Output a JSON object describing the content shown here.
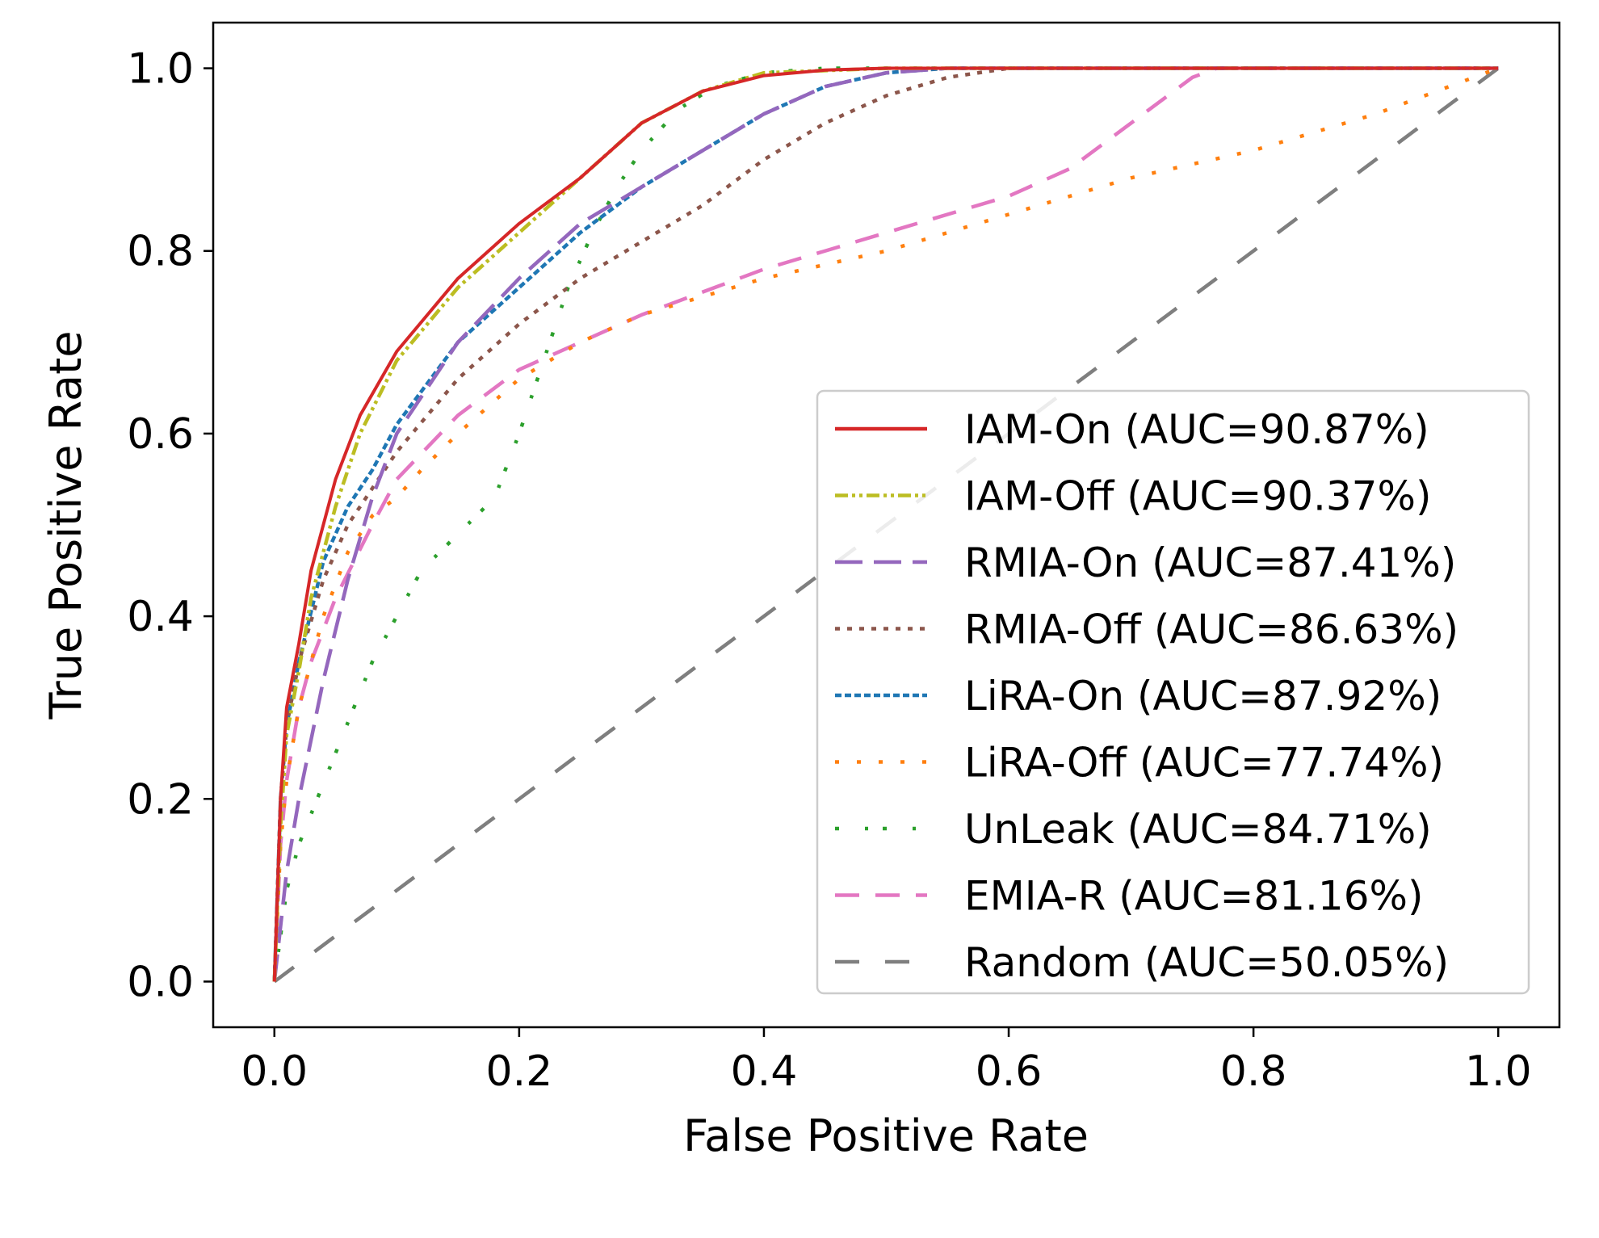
{
  "chart_data": {
    "type": "line",
    "title": "",
    "xlabel": "False Positive Rate",
    "ylabel": "True Positive Rate",
    "xlim": [
      -0.05,
      1.05
    ],
    "ylim": [
      -0.05,
      1.05
    ],
    "xticks": [
      0.0,
      0.2,
      0.4,
      0.6,
      0.8,
      1.0
    ],
    "yticks": [
      0.0,
      0.2,
      0.4,
      0.6,
      0.8,
      1.0
    ],
    "xtick_labels": [
      "0.0",
      "0.2",
      "0.4",
      "0.6",
      "0.8",
      "1.0"
    ],
    "ytick_labels": [
      "0.0",
      "0.2",
      "0.4",
      "0.6",
      "0.8",
      "1.0"
    ],
    "grid": false,
    "legend_position": "lower-right",
    "series": [
      {
        "name": "IAM-On (AUC=90.87%)",
        "color": "#d62728",
        "dash": "solid",
        "x": [
          0,
          0.005,
          0.01,
          0.02,
          0.03,
          0.05,
          0.07,
          0.1,
          0.15,
          0.2,
          0.25,
          0.3,
          0.35,
          0.4,
          0.45,
          0.5,
          0.6,
          1.0
        ],
        "y": [
          0,
          0.2,
          0.3,
          0.37,
          0.45,
          0.55,
          0.62,
          0.69,
          0.77,
          0.83,
          0.88,
          0.94,
          0.975,
          0.992,
          0.998,
          1.0,
          1.0,
          1.0
        ]
      },
      {
        "name": "IAM-Off (AUC=90.37%)",
        "color": "#bcbd22",
        "dash": "dashdotdot",
        "x": [
          0,
          0.005,
          0.01,
          0.02,
          0.03,
          0.05,
          0.07,
          0.1,
          0.15,
          0.2,
          0.25,
          0.3,
          0.35,
          0.4,
          0.5,
          1.0
        ],
        "y": [
          0,
          0.17,
          0.27,
          0.34,
          0.42,
          0.52,
          0.6,
          0.68,
          0.76,
          0.82,
          0.88,
          0.94,
          0.975,
          0.995,
          1.0,
          1.0
        ]
      },
      {
        "name": "RMIA-On (AUC=87.41%)",
        "color": "#9467bd",
        "dash": "longdash",
        "x": [
          0,
          0.01,
          0.02,
          0.04,
          0.06,
          0.08,
          0.1,
          0.15,
          0.2,
          0.25,
          0.3,
          0.35,
          0.4,
          0.45,
          0.5,
          0.55,
          1.0
        ],
        "y": [
          0,
          0.12,
          0.2,
          0.33,
          0.44,
          0.53,
          0.6,
          0.7,
          0.77,
          0.83,
          0.87,
          0.91,
          0.95,
          0.98,
          0.995,
          1.0,
          1.0
        ]
      },
      {
        "name": "RMIA-Off (AUC=86.63%)",
        "color": "#8c564b",
        "dash": "dotted",
        "x": [
          0,
          0.005,
          0.01,
          0.02,
          0.04,
          0.06,
          0.1,
          0.15,
          0.2,
          0.25,
          0.3,
          0.35,
          0.4,
          0.45,
          0.5,
          0.55,
          0.6,
          0.65,
          1.0
        ],
        "y": [
          0,
          0.2,
          0.28,
          0.35,
          0.44,
          0.5,
          0.58,
          0.66,
          0.72,
          0.77,
          0.81,
          0.85,
          0.9,
          0.94,
          0.97,
          0.99,
          1.0,
          1.0,
          1.0
        ]
      },
      {
        "name": "LiRA-On (AUC=87.92%)",
        "color": "#1f77b4",
        "dash": "shortdash",
        "x": [
          0,
          0.005,
          0.01,
          0.02,
          0.04,
          0.06,
          0.08,
          0.1,
          0.15,
          0.2,
          0.25,
          0.3,
          0.35,
          0.4,
          0.45,
          0.5,
          0.55,
          1.0
        ],
        "y": [
          0,
          0.2,
          0.28,
          0.35,
          0.46,
          0.52,
          0.56,
          0.61,
          0.7,
          0.76,
          0.82,
          0.87,
          0.91,
          0.95,
          0.98,
          0.995,
          1.0,
          1.0
        ]
      },
      {
        "name": "LiRA-Off (AUC=77.74%)",
        "color": "#ff7f0e",
        "dash": "dotted-sparse",
        "x": [
          0,
          0.005,
          0.01,
          0.02,
          0.04,
          0.06,
          0.08,
          0.1,
          0.12,
          0.15,
          0.2,
          0.25,
          0.3,
          0.4,
          0.5,
          0.6,
          0.7,
          0.8,
          0.9,
          1.0
        ],
        "y": [
          0,
          0.15,
          0.22,
          0.3,
          0.4,
          0.47,
          0.51,
          0.53,
          0.56,
          0.6,
          0.66,
          0.7,
          0.73,
          0.77,
          0.8,
          0.84,
          0.88,
          0.91,
          0.95,
          1.0
        ]
      },
      {
        "name": "UnLeak (AUC=84.71%)",
        "color": "#2ca02c",
        "dash": "dashdot",
        "x": [
          0,
          0.01,
          0.02,
          0.05,
          0.08,
          0.12,
          0.15,
          0.18,
          0.2,
          0.22,
          0.24,
          0.26,
          0.28,
          0.3,
          0.33,
          0.36,
          0.4,
          0.45,
          0.5,
          1.0
        ],
        "y": [
          0,
          0.1,
          0.15,
          0.25,
          0.35,
          0.45,
          0.49,
          0.53,
          0.6,
          0.68,
          0.76,
          0.82,
          0.87,
          0.91,
          0.955,
          0.98,
          0.995,
          1.0,
          1.0,
          1.0
        ]
      },
      {
        "name": "EMIA-R (AUC=81.16%)",
        "color": "#e377c2",
        "dash": "dashed",
        "x": [
          0,
          0.005,
          0.01,
          0.02,
          0.03,
          0.05,
          0.08,
          0.1,
          0.15,
          0.2,
          0.25,
          0.3,
          0.4,
          0.5,
          0.6,
          0.65,
          0.7,
          0.75,
          0.77,
          1.0
        ],
        "y": [
          0,
          0.15,
          0.22,
          0.3,
          0.35,
          0.42,
          0.5,
          0.55,
          0.62,
          0.67,
          0.7,
          0.73,
          0.78,
          0.82,
          0.86,
          0.89,
          0.94,
          0.99,
          1.0,
          1.0
        ]
      },
      {
        "name": "Random (AUC=50.05%)",
        "color": "#7f7f7f",
        "dash": "dashed-wide",
        "x": [
          0,
          1.0
        ],
        "y": [
          0,
          1.0
        ]
      }
    ]
  }
}
